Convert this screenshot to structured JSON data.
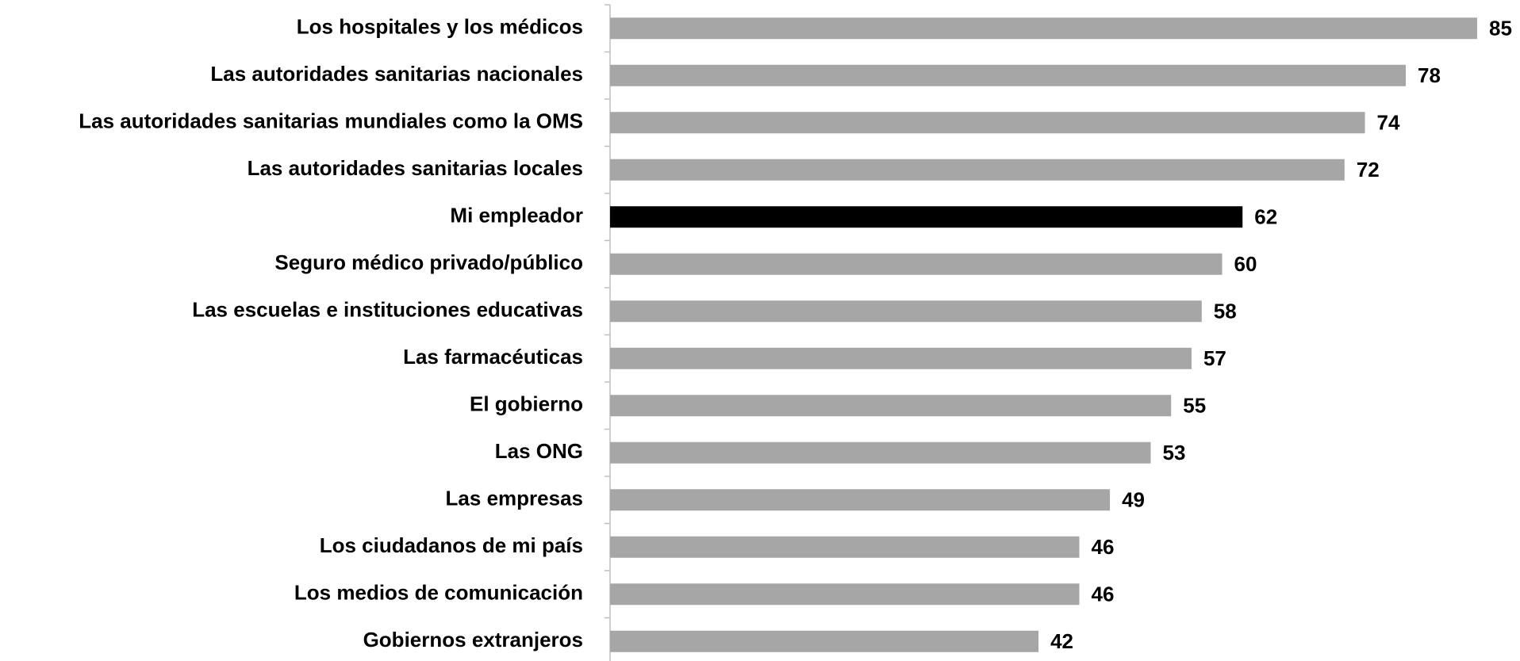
{
  "chart_data": {
    "type": "bar",
    "orientation": "horizontal",
    "categories": [
      "Los hospitales y los médicos",
      "Las autoridades sanitarias nacionales",
      "Las autoridades sanitarias mundiales como la OMS",
      "Las autoridades sanitarias locales",
      "Mi empleador",
      "Seguro médico privado/público",
      "Las escuelas e instituciones educativas",
      "Las farmacéuticas",
      "El gobierno",
      "Las ONG",
      "Las empresas",
      "Los ciudadanos de mi país",
      "Los medios de comunicación",
      "Gobiernos extranjeros"
    ],
    "values": [
      85,
      78,
      74,
      72,
      62,
      60,
      58,
      57,
      55,
      53,
      49,
      46,
      46,
      42
    ],
    "colors": [
      "#a6a6a6",
      "#a6a6a6",
      "#a6a6a6",
      "#a6a6a6",
      "#000000",
      "#a6a6a6",
      "#a6a6a6",
      "#a6a6a6",
      "#a6a6a6",
      "#a6a6a6",
      "#a6a6a6",
      "#a6a6a6",
      "#a6a6a6",
      "#a6a6a6"
    ]
  }
}
